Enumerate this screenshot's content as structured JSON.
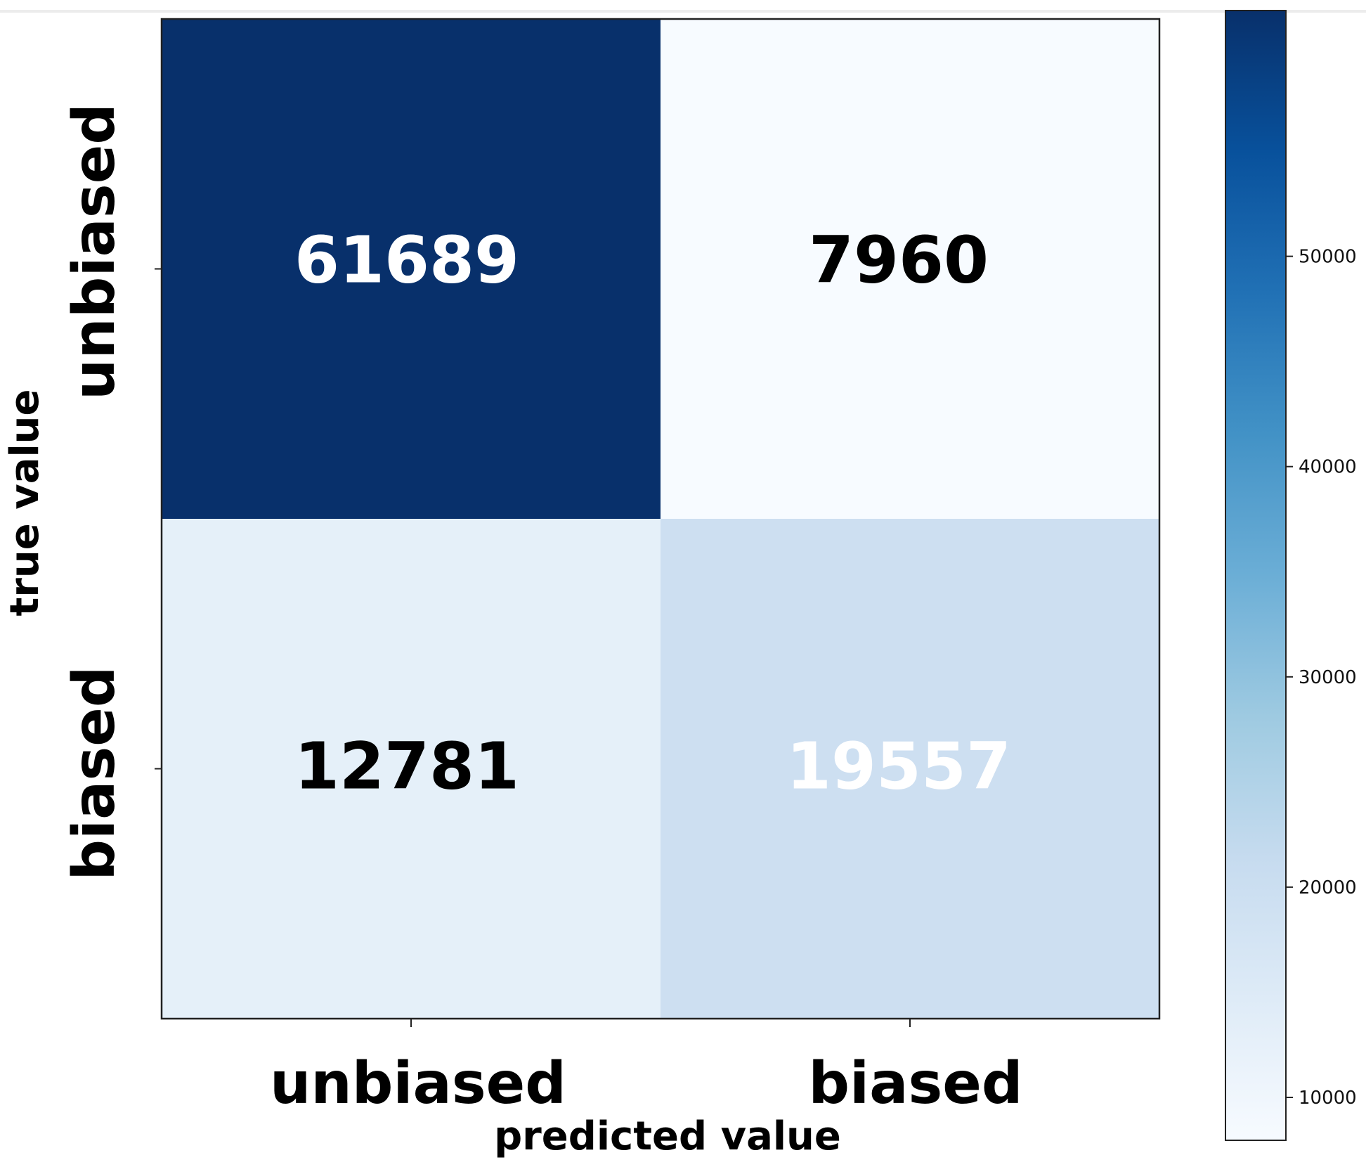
{
  "chart_data": {
    "type": "heatmap",
    "title": "",
    "xlabel": "predicted value",
    "ylabel": "true value",
    "x_categories": [
      "unbiased",
      "biased"
    ],
    "y_categories": [
      "unbiased",
      "biased"
    ],
    "values": [
      [
        61689,
        7960
      ],
      [
        12781,
        19557
      ]
    ],
    "colormap": "Blues",
    "colorbar": {
      "min": 7960,
      "max": 61689,
      "ticks": [
        10000,
        20000,
        30000,
        40000,
        50000
      ],
      "tick_labels": [
        "10000",
        "20000",
        "30000",
        "40000",
        "50000"
      ]
    },
    "grid": false
  }
}
